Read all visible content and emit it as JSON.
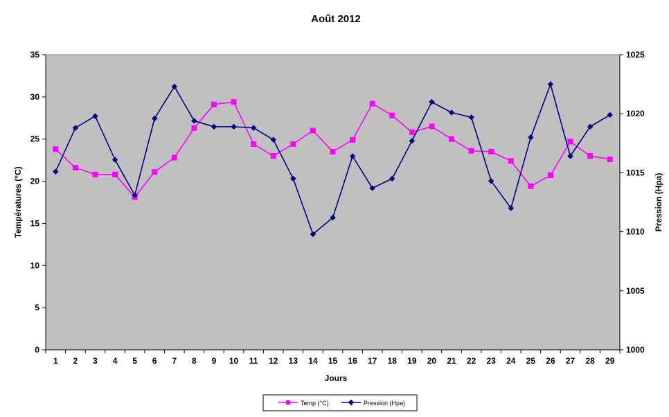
{
  "chart_data": {
    "type": "line",
    "title": "Août 2012",
    "xlabel": "Jours",
    "ylabel_left": "Températures (°C)",
    "ylabel_right": "Pression (Hpa)",
    "ylim_left": [
      0,
      35
    ],
    "ylim_right": [
      1000,
      1025
    ],
    "yticks_left": [
      "0",
      "5",
      "10",
      "15",
      "20",
      "25",
      "30",
      "35"
    ],
    "yticks_right": [
      "1000",
      "1005",
      "1010",
      "1015",
      "1020",
      "1025"
    ],
    "categories": [
      "1",
      "2",
      "3",
      "4",
      "5",
      "6",
      "7",
      "8",
      "9",
      "10",
      "11",
      "12",
      "13",
      "14",
      "15",
      "16",
      "17",
      "18",
      "19",
      "20",
      "21",
      "22",
      "23",
      "24",
      "25",
      "26",
      "27",
      "28",
      "29"
    ],
    "grid": false,
    "plot_background": "#c0c0c0",
    "legend_position": "bottom",
    "series": [
      {
        "name": "Temp (°C)",
        "axis": "left",
        "color": "#ff00ff",
        "marker": "square",
        "values": [
          23.8,
          21.6,
          20.8,
          20.8,
          18.1,
          21.1,
          22.8,
          26.3,
          29.1,
          29.4,
          24.4,
          23.0,
          24.4,
          26.0,
          23.5,
          24.9,
          29.2,
          27.8,
          25.8,
          26.5,
          25.0,
          23.6,
          23.5,
          22.4,
          19.4,
          20.7,
          24.7,
          23.0,
          22.6
        ]
      },
      {
        "name": "Pression (Hpa)",
        "axis": "right",
        "color": "#000080",
        "marker": "diamond",
        "values": [
          1015.1,
          1018.8,
          1019.8,
          1016.1,
          1013.1,
          1019.6,
          1022.3,
          1019.4,
          1018.9,
          1018.9,
          1018.8,
          1017.8,
          1014.5,
          1009.8,
          1011.2,
          1016.4,
          1013.7,
          1014.5,
          1017.7,
          1021.0,
          1020.1,
          1019.7,
          1014.3,
          1012.0,
          1018.0,
          1022.5,
          1016.4,
          1018.9,
          1019.9
        ]
      }
    ]
  }
}
